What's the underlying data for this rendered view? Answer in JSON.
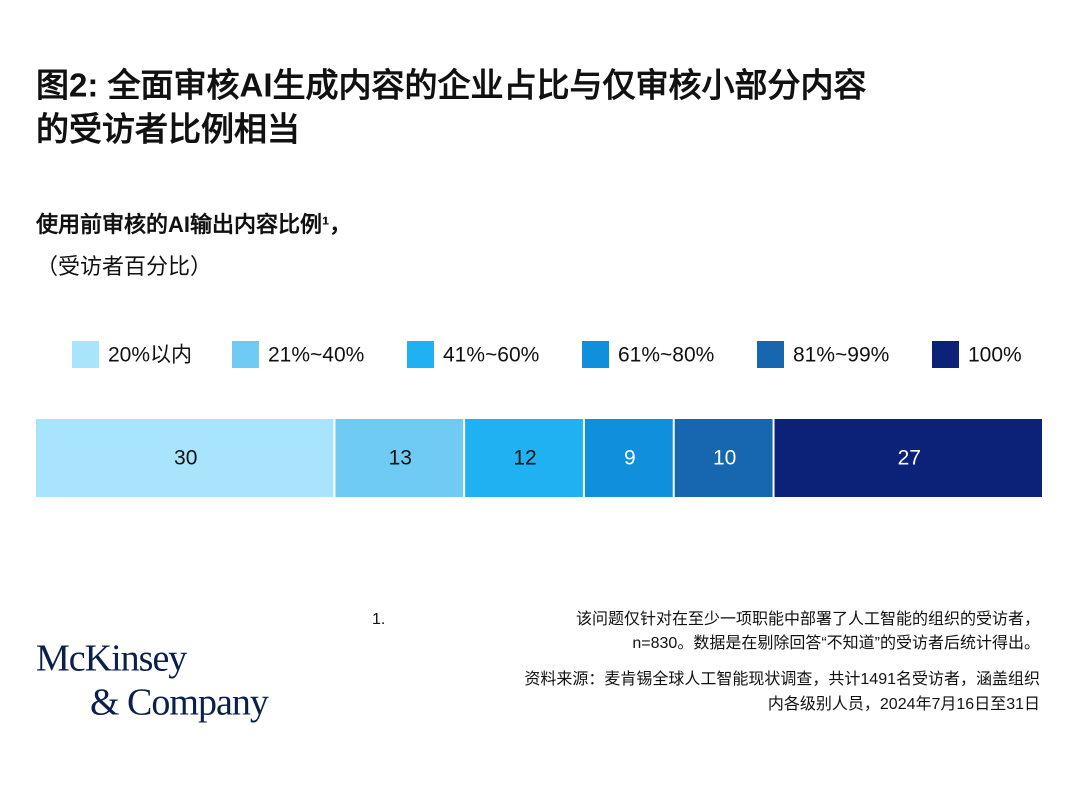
{
  "chart_data": {
    "type": "bar",
    "orientation": "horizontal",
    "stacked": true,
    "title": [
      "图2: 全面审核AI生成内容的企业占比与仅审核小部分内容",
      "的受访者比例相当"
    ],
    "subtitle": "使用前审核的AI输出内容比例¹，",
    "unit_note": "（受访者百分比）",
    "series": [
      {
        "name": "20%以内",
        "color": "#a8e4fb",
        "text_color": "#111111",
        "values": [
          30
        ]
      },
      {
        "name": "21%~40%",
        "color": "#70cbf4",
        "text_color": "#111111",
        "values": [
          13
        ]
      },
      {
        "name": "41%~60%",
        "color": "#1fb1f1",
        "text_color": "#111111",
        "values": [
          12
        ]
      },
      {
        "name": "61%~80%",
        "color": "#0f8fdc",
        "text_color": "#ffffff",
        "values": [
          9
        ]
      },
      {
        "name": "81%~99%",
        "color": "#1766b0",
        "text_color": "#ffffff",
        "values": [
          10
        ]
      },
      {
        "name": "100%",
        "color": "#0c2278",
        "text_color": "#ffffff",
        "values": [
          27
        ]
      }
    ],
    "footnote": {
      "marker": "1.",
      "lines": [
        "该问题仅针对在至少一项职能中部署了人工智能的组织的受访者，",
        "n=830。数据是在剔除回答“不知道”的受访者后统计得出。"
      ]
    },
    "source": [
      "资料来源：麦肯锡全球人工智能现状调查，共计1491名受访者，涵盖组织",
      "内各级别人员，2024年7月16日至31日"
    ],
    "logo": [
      "McKinsey",
      "& Company"
    ]
  }
}
